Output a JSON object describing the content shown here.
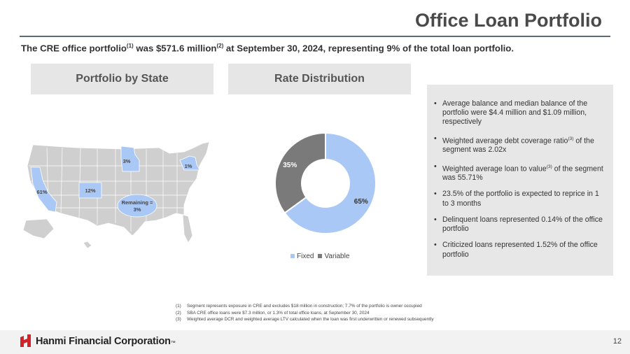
{
  "title": "Office Loan Portfolio",
  "subtitle": {
    "part1": "The CRE office portfolio",
    "sup1": "(1)",
    "part2": " was $571.6 million",
    "sup2": "(2)",
    "part3": " at September 30, 2024, representing 9% of the total loan portfolio."
  },
  "sections": {
    "state_header": "Portfolio by State",
    "rate_header": "Rate Distribution"
  },
  "map": {
    "labels": {
      "ca": "61%",
      "co": "12%",
      "mn": "3%",
      "ny": "1%",
      "remaining_line1": "Remaining =",
      "remaining_line2": "3%"
    },
    "colors": {
      "land": "#cfcfcf",
      "highlight": "#a9c8f5",
      "border": "#ffffff"
    }
  },
  "chart_data": {
    "type": "pie",
    "title": "Rate Distribution",
    "categories": [
      "Fixed",
      "Variable"
    ],
    "values": [
      65,
      35
    ],
    "data_labels": [
      "65%",
      "35%"
    ],
    "colors": [
      "#a9c8f5",
      "#7a7a7a"
    ],
    "legend_position": "bottom"
  },
  "bullets": [
    {
      "text": "Average balance and median balance of the portfolio were $4.4 million and $1.09 million, respectively"
    },
    {
      "text": "Weighted average debt coverage ratio",
      "sup": "(3)",
      "text2": " of the segment was 2.02x"
    },
    {
      "text": "Weighted average loan to value",
      "sup": "(3)",
      "text2": " of the segment was 55.71%"
    },
    {
      "text": "23.5% of the portfolio is expected to reprice in 1 to 3 months"
    },
    {
      "text": "Delinquent loans represented 0.14% of the office portfolio"
    },
    {
      "text": "Criticized loans represented 1.52% of the office portfolio"
    }
  ],
  "footnotes": [
    {
      "num": "(1)",
      "text": "Segment represents exposure in CRE and excludes $18 million in construction; 7.7% of the portfolio is owner occupied"
    },
    {
      "num": "(2)",
      "text": "SBA CRE office loans were $7.3 million, or 1.3% of total office loans, at September 30, 2024"
    },
    {
      "num": "(3)",
      "text": "Weighted average DCR and weighted average LTV calculated when the loan was first underwritten or renewed subsequently"
    }
  ],
  "footer": {
    "company": "Hanmi Financial Corporation",
    "tm": "™",
    "page": "12",
    "brand_color": "#d2232a"
  }
}
